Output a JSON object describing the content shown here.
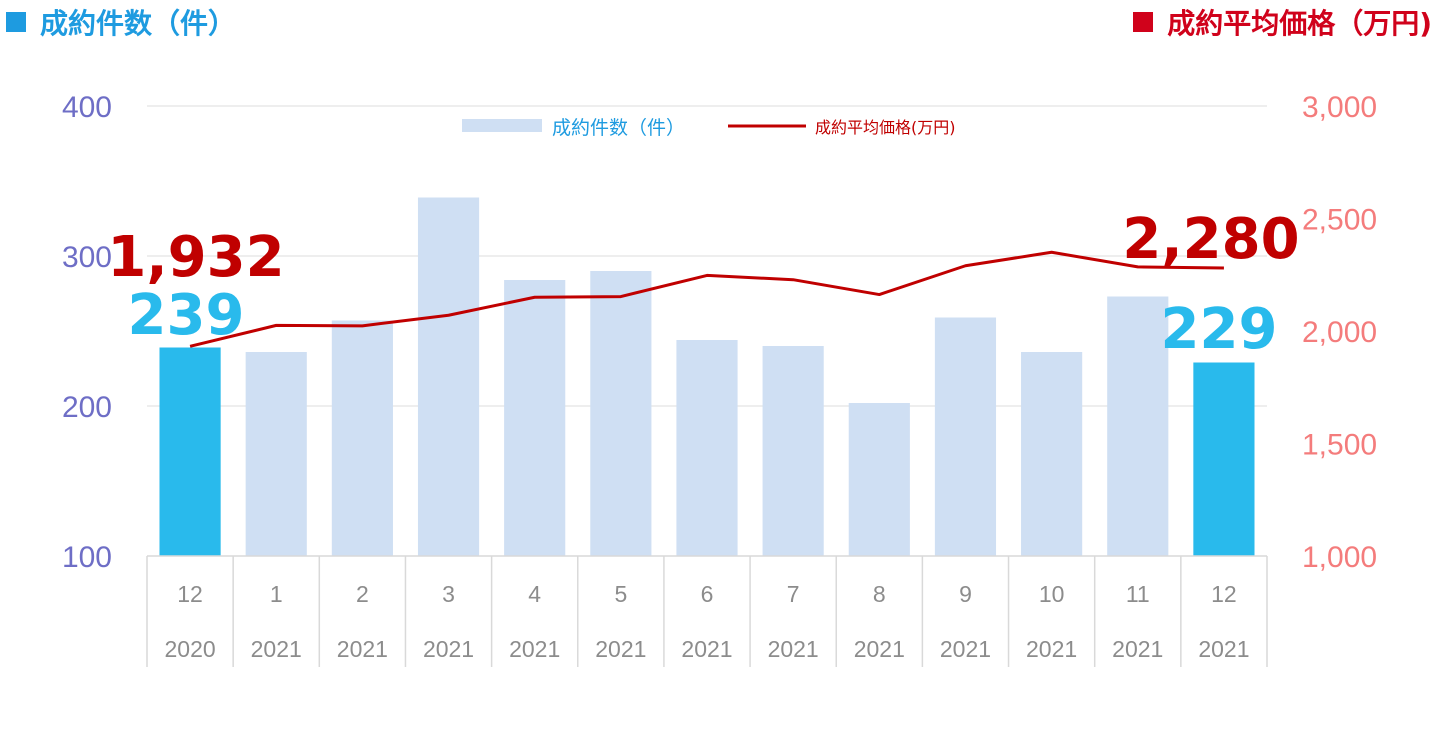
{
  "header": {
    "left_title": "成約件数（件）",
    "right_title": "成約平均価格（万円)"
  },
  "legend": {
    "bars_label": "成約件数（件）",
    "line_label": "成約平均価格(万円)"
  },
  "colors": {
    "bar": "#CFDFF3",
    "bar_highlight": "#29BAEC",
    "line": "#C00000",
    "left_axis": "#6E6EC6",
    "right_axis": "#F47C7C",
    "header_left": "#1E9BE0",
    "header_right": "#D0021B",
    "grid": "#DDDDDD",
    "category_text": "#8C8C8C"
  },
  "chart_data": {
    "type": "bar",
    "categories": [
      "12",
      "1",
      "2",
      "3",
      "4",
      "5",
      "6",
      "7",
      "8",
      "9",
      "10",
      "11",
      "12"
    ],
    "category_years": [
      "2020",
      "2021",
      "2021",
      "2021",
      "2021",
      "2021",
      "2021",
      "2021",
      "2021",
      "2021",
      "2021",
      "2021",
      "2021"
    ],
    "series": [
      {
        "name": "成約件数（件）",
        "axis": "left",
        "type": "bar",
        "values": [
          239,
          236,
          257,
          339,
          284,
          290,
          244,
          240,
          202,
          259,
          236,
          273,
          229
        ],
        "highlight_indices": [
          0,
          12
        ]
      },
      {
        "name": "成約平均価格(万円)",
        "axis": "right",
        "type": "line",
        "values": [
          1932,
          2025,
          2023,
          2070,
          2150,
          2153,
          2247,
          2228,
          2162,
          2290,
          2350,
          2285,
          2280
        ]
      }
    ],
    "y_left": {
      "min": 100,
      "max": 400,
      "ticks": [
        100,
        200,
        300,
        400
      ],
      "tick_labels": [
        "100",
        "200",
        "300",
        "400"
      ]
    },
    "y_right": {
      "min": 1000,
      "max": 3000,
      "ticks": [
        1000,
        1500,
        2000,
        2500,
        3000
      ],
      "tick_labels": [
        "1,000",
        "1,500",
        "2,000",
        "2,500",
        "3,000"
      ]
    },
    "annotations": [
      {
        "text": "1,932",
        "series": "line",
        "index": 0
      },
      {
        "text": "239",
        "series": "bar",
        "index": 0
      },
      {
        "text": "2,280",
        "series": "line",
        "index": 12
      },
      {
        "text": "229",
        "series": "bar",
        "index": 12
      }
    ],
    "grid": true,
    "legend_position": "top-center"
  }
}
